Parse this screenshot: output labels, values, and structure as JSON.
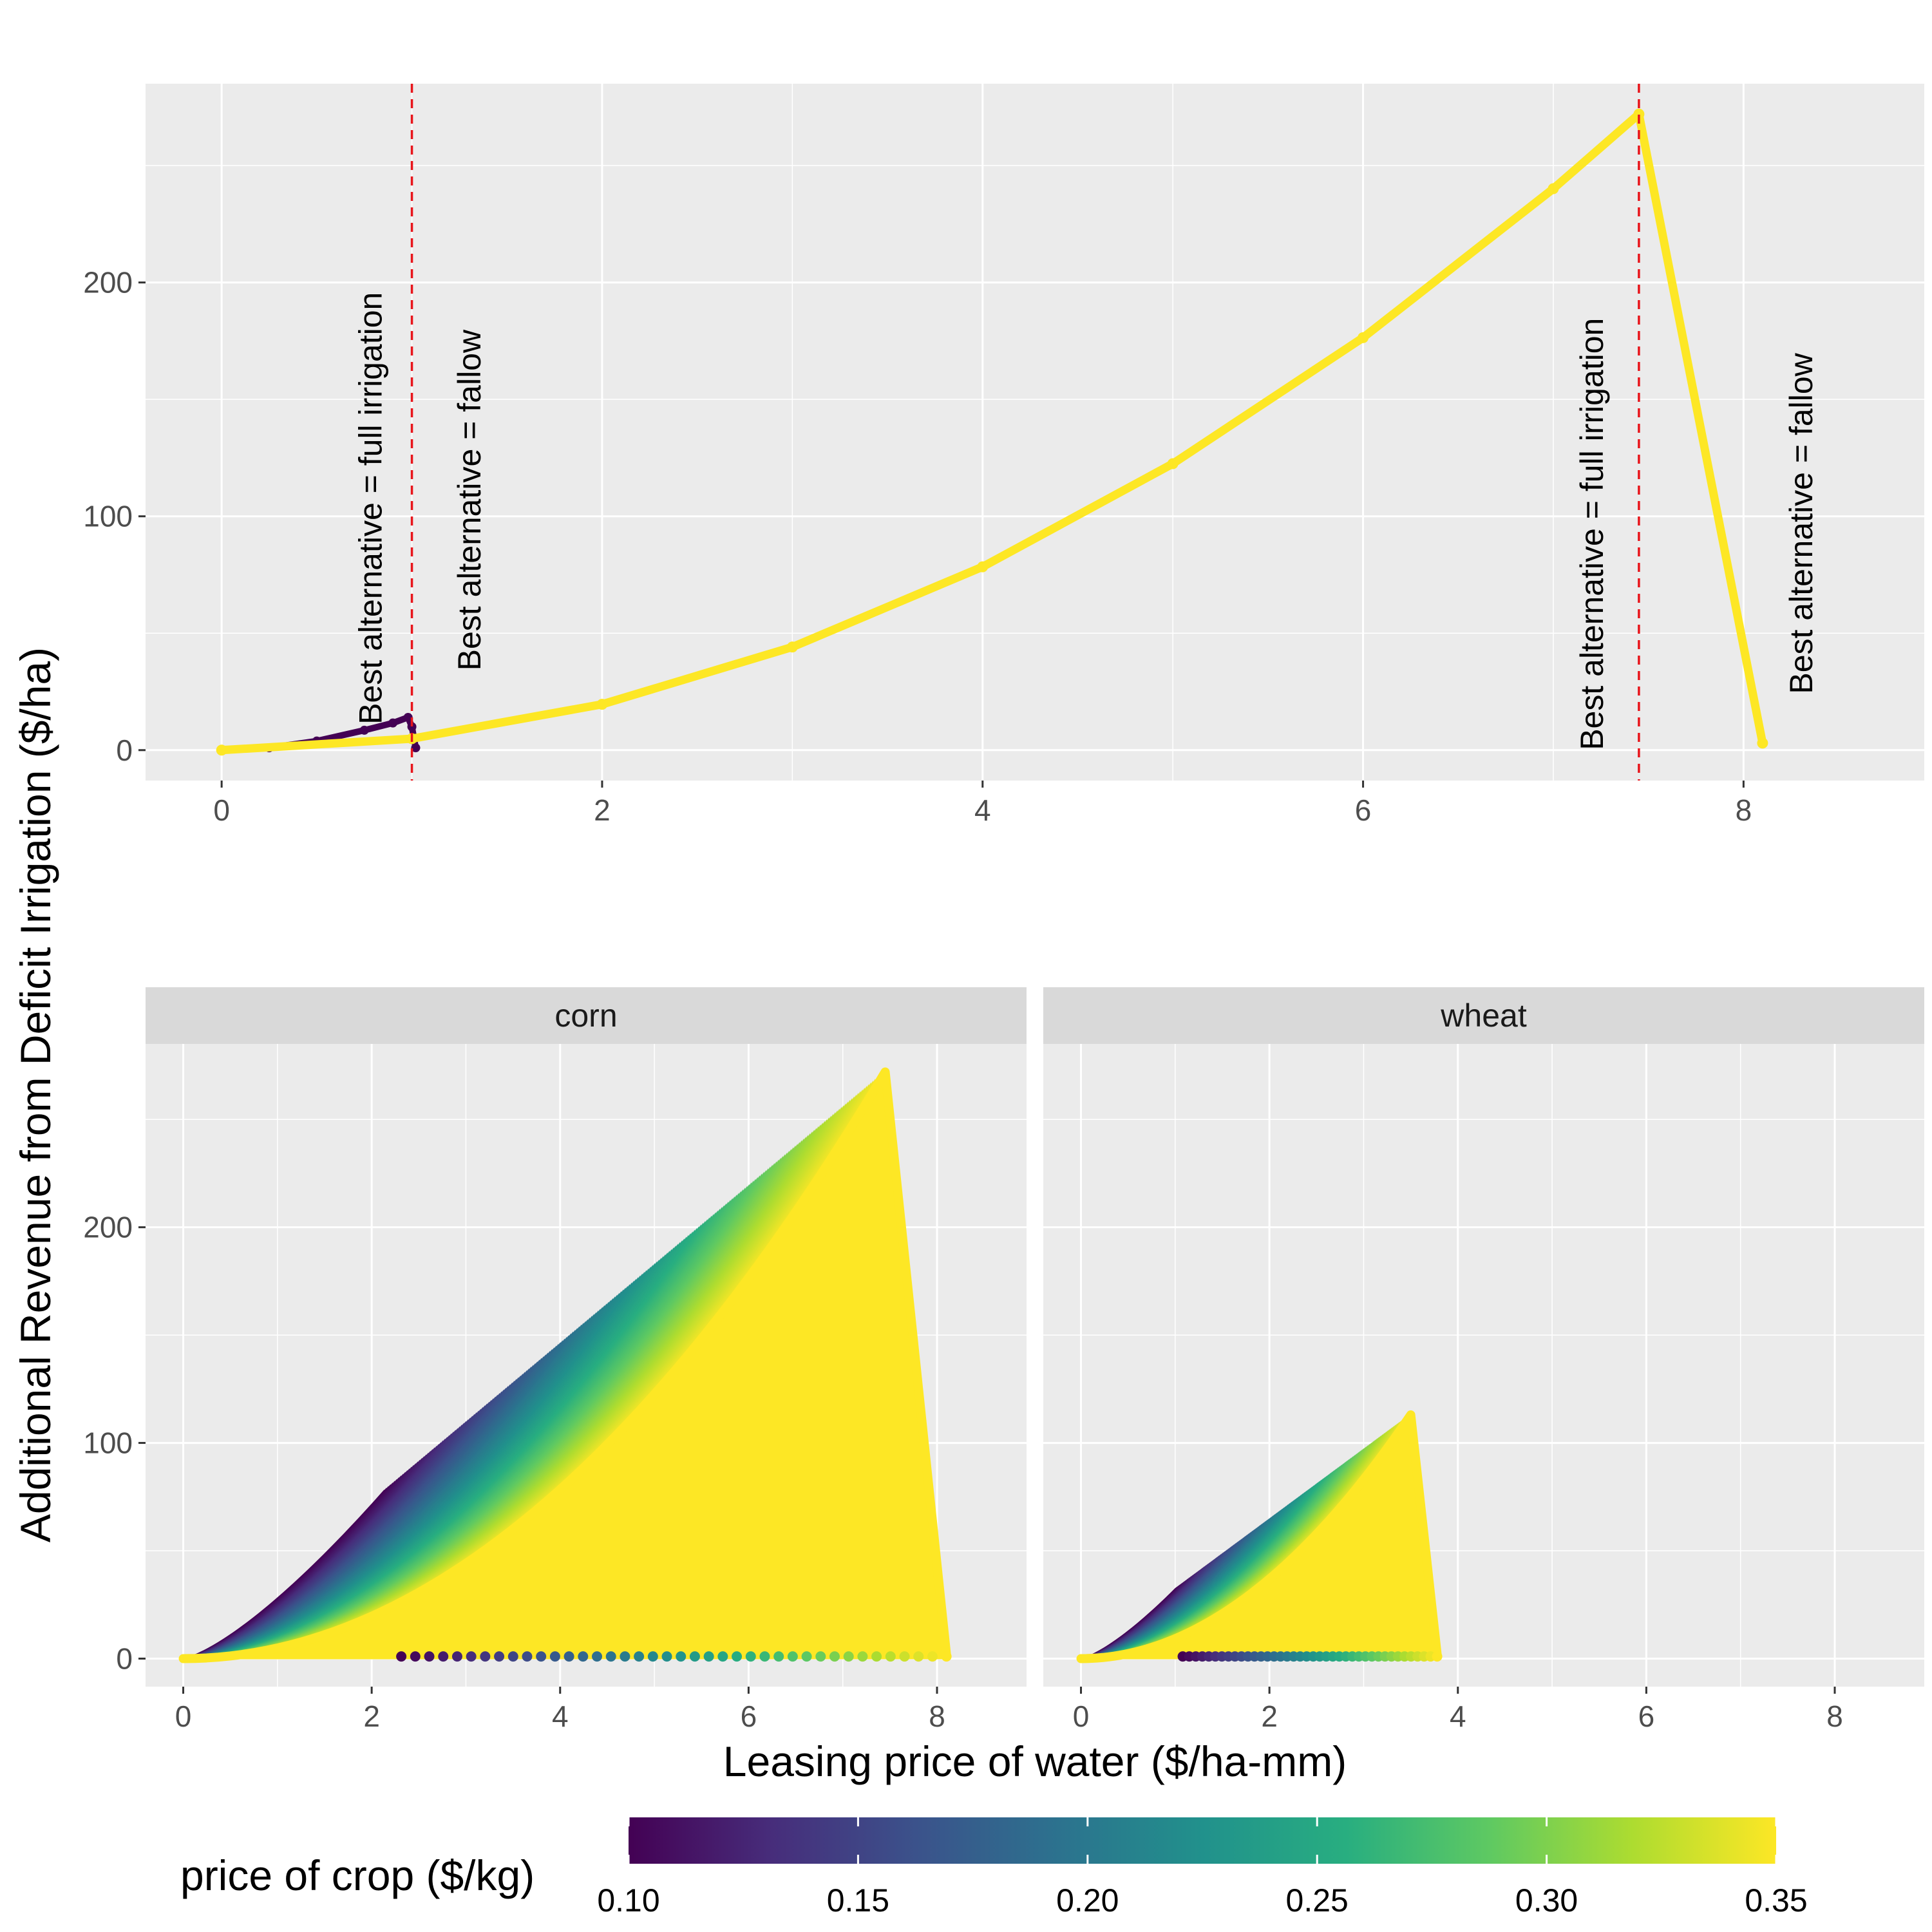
{
  "figure": {
    "ylabel": "Additional Revenue from Deficit Irrigation ($/ha)",
    "xlabel": "Leasing price of water ($/ha-mm)"
  },
  "legend": {
    "title": "price of crop ($/kg)",
    "ticks": [
      "0.10",
      "0.15",
      "0.20",
      "0.25",
      "0.30",
      "0.35"
    ],
    "tick_values": [
      0.1,
      0.15,
      0.2,
      0.25,
      0.3,
      0.35
    ],
    "range": [
      0.1,
      0.35
    ],
    "colors": [
      "#440154",
      "#472d7b",
      "#3b528b",
      "#2c728e",
      "#21918c",
      "#28ae80",
      "#5ec962",
      "#addc30",
      "#fde725"
    ]
  },
  "chart_data": [
    {
      "type": "scatter",
      "panel": "top",
      "xlim": [
        -0.4,
        8.95
      ],
      "ylim": [
        -13,
        285
      ],
      "x_ticks": [
        0,
        2,
        4,
        6,
        8
      ],
      "y_ticks": [
        0,
        100,
        200
      ],
      "grid": true,
      "series": [
        {
          "color": "#440154",
          "price": 0.1,
          "x": [
            0,
            0.25,
            0.5,
            0.75,
            0.9,
            0.98,
            1.0,
            1.02
          ],
          "y": [
            0,
            1.0,
            3.9,
            8.5,
            11.6,
            14.0,
            10.0,
            1.0
          ]
        },
        {
          "color": "#fde725",
          "price": 0.35,
          "x": [
            0,
            1,
            2,
            3,
            4,
            5,
            6,
            7,
            7.45,
            8.1
          ],
          "y": [
            0,
            4.9,
            19.6,
            44.1,
            78.4,
            122.5,
            176.4,
            240.1,
            272.0,
            3.0
          ]
        }
      ],
      "vlines": [
        1.0,
        7.45
      ],
      "annotations": [
        {
          "text": "Best alternative = full irrigation",
          "x": 0.78,
          "y": 11
        },
        {
          "text": "Best alternative = fallow",
          "x": 1.3,
          "y": 34
        },
        {
          "text": "Best alternative = full irrigation",
          "x": 7.2,
          "y": 0
        },
        {
          "text": "Best alternative = fallow",
          "x": 8.3,
          "y": 24
        }
      ]
    },
    {
      "type": "scatter",
      "panel": "corn",
      "strip_label": "corn",
      "xlim": [
        -0.4,
        8.95
      ],
      "ylim": [
        -13,
        285
      ],
      "x_ticks": [
        0,
        2,
        4,
        6,
        8
      ],
      "y_ticks": [
        0,
        100,
        200
      ],
      "grid": true,
      "price_min": 0.1,
      "price_max": 0.35,
      "peak": [
        7.45,
        272
      ],
      "end_x": 8.1,
      "curve_coef": 4.9,
      "curve_exponent": 2
    },
    {
      "type": "scatter",
      "panel": "wheat",
      "strip_label": "wheat",
      "xlim": [
        -0.4,
        8.95
      ],
      "ylim": [
        -13,
        285
      ],
      "x_ticks": [
        0,
        2,
        4,
        6,
        8
      ],
      "y_ticks": [
        0,
        100,
        200
      ],
      "grid": true,
      "price_min": 0.1,
      "price_max": 0.35,
      "peak": [
        3.5,
        113
      ],
      "end_x": 3.78,
      "curve_coef": 9.22,
      "curve_exponent": 2
    }
  ]
}
